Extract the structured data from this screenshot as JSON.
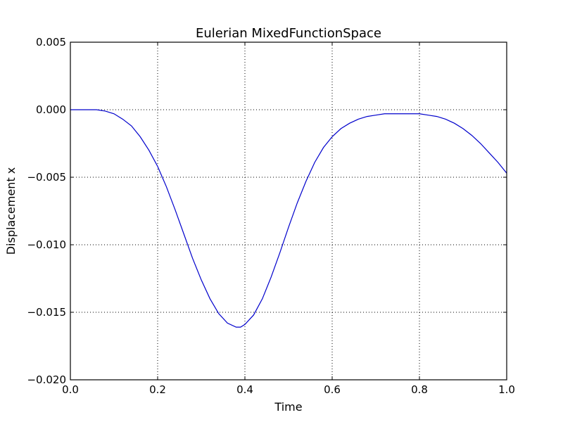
{
  "chart_data": {
    "type": "line",
    "title": "Eulerian MixedFunctionSpace",
    "xlabel": "Time",
    "ylabel": "Displacement x",
    "xlim": [
      0.0,
      1.0
    ],
    "ylim": [
      -0.02,
      0.005
    ],
    "grid": true,
    "x_ticks": [
      0.0,
      0.2,
      0.4,
      0.6,
      0.8,
      1.0
    ],
    "x_tick_labels": [
      "0.0",
      "0.2",
      "0.4",
      "0.6",
      "0.8",
      "1.0"
    ],
    "y_ticks": [
      0.005,
      0.0,
      -0.005,
      -0.01,
      -0.015,
      -0.02
    ],
    "y_tick_labels": [
      "0.005",
      "0.000",
      "−0.005",
      "−0.010",
      "−0.015",
      "−0.020"
    ],
    "series": [
      {
        "color": "#0000cc",
        "x": [
          0.0,
          0.02,
          0.04,
          0.06,
          0.08,
          0.1,
          0.12,
          0.14,
          0.16,
          0.18,
          0.2,
          0.22,
          0.24,
          0.26,
          0.28,
          0.3,
          0.32,
          0.34,
          0.36,
          0.38,
          0.39,
          0.4,
          0.42,
          0.44,
          0.46,
          0.48,
          0.5,
          0.52,
          0.54,
          0.56,
          0.58,
          0.6,
          0.62,
          0.64,
          0.66,
          0.68,
          0.7,
          0.72,
          0.74,
          0.76,
          0.78,
          0.8,
          0.82,
          0.84,
          0.86,
          0.88,
          0.9,
          0.92,
          0.94,
          0.96,
          0.98,
          1.0
        ],
        "y": [
          0.0,
          0.0,
          0.0,
          0.0,
          -0.0001,
          -0.0003,
          -0.0007,
          -0.0012,
          -0.002,
          -0.003,
          -0.0042,
          -0.0057,
          -0.0074,
          -0.0092,
          -0.011,
          -0.0126,
          -0.014,
          -0.0151,
          -0.0158,
          -0.0161,
          -0.0161,
          -0.0159,
          -0.0152,
          -0.014,
          -0.0124,
          -0.0106,
          -0.0087,
          -0.0069,
          -0.0053,
          -0.0039,
          -0.0028,
          -0.002,
          -0.0014,
          -0.001,
          -0.0007,
          -0.0005,
          -0.0004,
          -0.0003,
          -0.0003,
          -0.0003,
          -0.0003,
          -0.0003,
          -0.0004,
          -0.0005,
          -0.0007,
          -0.001,
          -0.0014,
          -0.0019,
          -0.0025,
          -0.0032,
          -0.0039,
          -0.0047
        ]
      }
    ]
  }
}
